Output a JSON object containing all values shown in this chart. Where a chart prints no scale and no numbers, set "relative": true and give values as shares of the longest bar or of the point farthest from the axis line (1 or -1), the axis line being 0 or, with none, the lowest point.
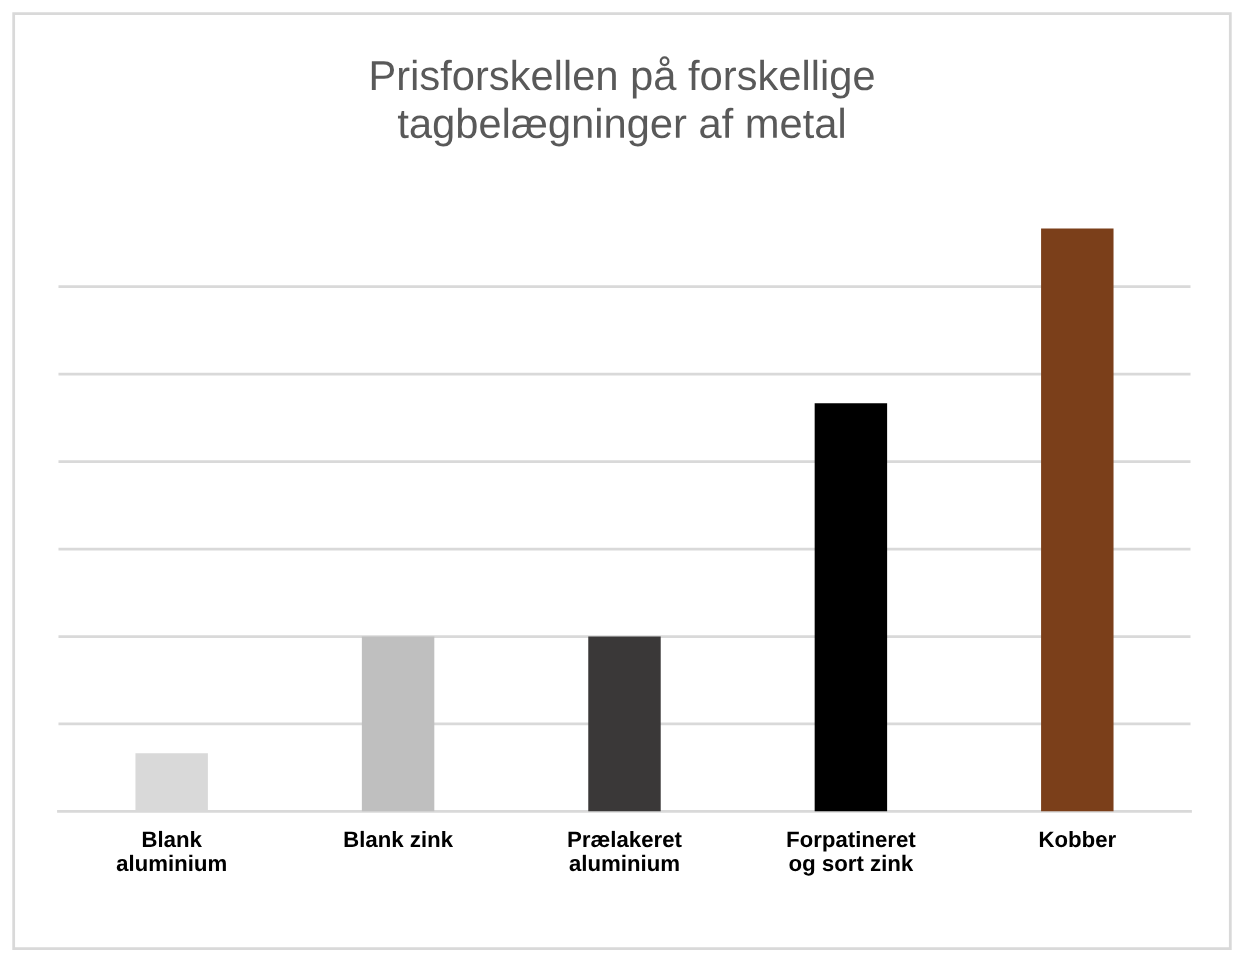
{
  "chart_data": {
    "type": "bar",
    "title": "Prisforskellen på forskellige\ntagbelægninger af metal",
    "categories": [
      "Blank\naluminium",
      "Blank zink",
      "Prælakeret\naluminium",
      "Forpatineret\nog sort zink",
      "Kobber"
    ],
    "values": [
      0.1,
      0.3,
      0.3,
      0.7,
      1.0
    ],
    "colors": [
      "#d9d9d9",
      "#bfbfbf",
      "#3a3838",
      "#000000",
      "#7b3f1a"
    ],
    "relative": true,
    "grid": "y"
  }
}
